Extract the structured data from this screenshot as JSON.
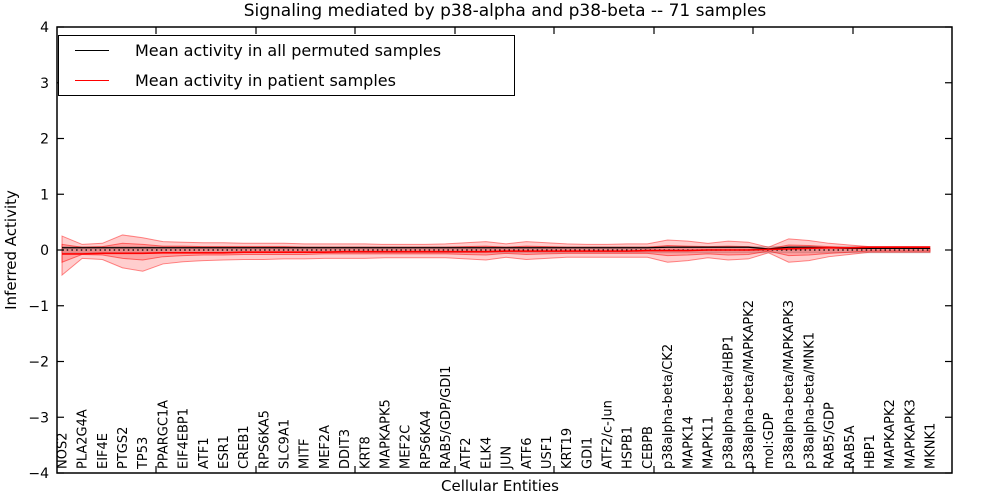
{
  "chart_data": {
    "type": "line",
    "title": "Signaling mediated by p38-alpha and p38-beta -- 71 samples",
    "xlabel": "Cellular Entities",
    "ylabel": "Inferred Activity",
    "ylim": [
      -4,
      4
    ],
    "ytick_labels": [
      "4",
      "3",
      "2",
      "1",
      "0",
      "−1",
      "−2",
      "−3",
      "−4"
    ],
    "ytick_values": [
      4,
      3,
      2,
      1,
      0,
      -1,
      -2,
      -3,
      -4
    ],
    "grid": false,
    "legend_position": "upper left",
    "categories": [
      "NOS2",
      "PLA2G4A",
      "EIF4E",
      "PTGS2",
      "TP53",
      "PPARGC1A",
      "EIF4EBP1",
      "ATF1",
      "ESR1",
      "CREB1",
      "RPS6KA5",
      "SLC9A1",
      "MITF",
      "MEF2A",
      "DDIT3",
      "KRT8",
      "MAPKAPK5",
      "MEF2C",
      "RPS6KA4",
      "RAB5/GDP/GDI1",
      "ATF2",
      "ELK4",
      "JUN",
      "ATF6",
      "USF1",
      "KRT19",
      "GDI1",
      "ATF2/c-Jun",
      "HSPB1",
      "CEBPB",
      "p38alpha-beta/CK2",
      "MAPK14",
      "MAPK11",
      "p38alpha-beta/HBP1",
      "p38alpha-beta/MAPKAPK2",
      "mol:GDP",
      "p38alpha-beta/MAPKAPK3",
      "p38alpha-beta/MNK1",
      "RAB5/GDP",
      "RAB5A",
      "HBP1",
      "MAPKAPK2",
      "MAPKAPK3",
      "MKNK1"
    ],
    "series": [
      {
        "name": "Mean activity in all permuted samples",
        "color": "#000000",
        "style": "solid",
        "width": 1.3,
        "values": [
          0.04,
          0.04,
          0.04,
          0.04,
          0.04,
          0.04,
          0.04,
          0.04,
          0.04,
          0.04,
          0.04,
          0.04,
          0.04,
          0.04,
          0.04,
          0.04,
          0.04,
          0.04,
          0.04,
          0.04,
          0.04,
          0.04,
          0.04,
          0.04,
          0.04,
          0.04,
          0.04,
          0.04,
          0.04,
          0.04,
          0.05,
          0.05,
          0.05,
          0.05,
          0.05,
          0.02,
          0.05,
          0.05,
          0.04,
          0.03,
          0.03,
          0.03,
          0.03,
          0.03
        ]
      },
      {
        "name": "Mean activity in patient samples",
        "color": "#ff0000",
        "style": "solid",
        "width": 1.6,
        "values": [
          -0.07,
          -0.07,
          -0.06,
          -0.06,
          -0.06,
          -0.05,
          -0.05,
          -0.05,
          -0.05,
          -0.04,
          -0.04,
          -0.04,
          -0.04,
          -0.04,
          -0.03,
          -0.03,
          -0.03,
          -0.03,
          -0.03,
          -0.03,
          -0.03,
          -0.03,
          -0.02,
          -0.02,
          -0.02,
          -0.02,
          -0.02,
          -0.02,
          -0.02,
          -0.01,
          -0.01,
          -0.01,
          0.0,
          0.0,
          0.0,
          0.01,
          0.02,
          0.03,
          0.04,
          0.04,
          0.05,
          0.05,
          0.05,
          0.05
        ]
      },
      {
        "name": "zero-baseline",
        "color": "#000000",
        "style": "dotted",
        "width": 1.3,
        "values": 0
      }
    ],
    "bands": [
      {
        "name": "permuted-sample-range",
        "fill": "rgba(130,130,130,0.30)",
        "edge": "rgba(120,120,120,0.35)",
        "upper": 0.06,
        "lower": -0.05
      },
      {
        "name": "patient-sample-range-outer",
        "fill": "rgba(255,60,60,0.25)",
        "edge": "rgba(255,0,0,0.45)",
        "upper": [
          0.25,
          0.1,
          0.12,
          0.27,
          0.22,
          0.15,
          0.14,
          0.13,
          0.13,
          0.12,
          0.12,
          0.12,
          0.11,
          0.11,
          0.11,
          0.11,
          0.1,
          0.1,
          0.1,
          0.11,
          0.13,
          0.15,
          0.11,
          0.15,
          0.13,
          0.11,
          0.1,
          0.1,
          0.11,
          0.11,
          0.18,
          0.16,
          0.12,
          0.16,
          0.14,
          0.05,
          0.2,
          0.17,
          0.12,
          0.09,
          0.06,
          0.06,
          0.06,
          0.06
        ],
        "lower": [
          -0.45,
          -0.15,
          -0.17,
          -0.32,
          -0.38,
          -0.25,
          -0.21,
          -0.19,
          -0.18,
          -0.17,
          -0.17,
          -0.16,
          -0.16,
          -0.15,
          -0.15,
          -0.15,
          -0.14,
          -0.14,
          -0.14,
          -0.14,
          -0.16,
          -0.18,
          -0.13,
          -0.17,
          -0.15,
          -0.13,
          -0.13,
          -0.13,
          -0.13,
          -0.13,
          -0.22,
          -0.19,
          -0.14,
          -0.18,
          -0.16,
          -0.05,
          -0.22,
          -0.19,
          -0.12,
          -0.08,
          -0.04,
          -0.04,
          -0.04,
          -0.04
        ]
      },
      {
        "name": "patient-sample-range-inner",
        "fill": "rgba(255,60,60,0.30)",
        "edge": "rgba(255,0,0,0.50)",
        "upper": [
          0.1,
          0.05,
          0.06,
          0.12,
          0.1,
          0.07,
          0.07,
          0.06,
          0.06,
          0.06,
          0.06,
          0.06,
          0.05,
          0.05,
          0.05,
          0.05,
          0.05,
          0.05,
          0.05,
          0.05,
          0.06,
          0.07,
          0.05,
          0.07,
          0.06,
          0.05,
          0.05,
          0.05,
          0.05,
          0.05,
          0.08,
          0.07,
          0.06,
          0.07,
          0.06,
          0.02,
          0.09,
          0.08,
          0.06,
          0.04,
          0.03,
          0.03,
          0.03,
          0.03
        ],
        "lower": [
          -0.22,
          -0.08,
          -0.09,
          -0.15,
          -0.18,
          -0.12,
          -0.1,
          -0.09,
          -0.09,
          -0.08,
          -0.08,
          -0.08,
          -0.08,
          -0.07,
          -0.07,
          -0.07,
          -0.07,
          -0.07,
          -0.07,
          -0.07,
          -0.08,
          -0.09,
          -0.06,
          -0.08,
          -0.07,
          -0.06,
          -0.06,
          -0.06,
          -0.06,
          -0.06,
          -0.1,
          -0.09,
          -0.07,
          -0.09,
          -0.08,
          -0.02,
          -0.1,
          -0.09,
          -0.06,
          -0.04,
          -0.02,
          -0.02,
          -0.02,
          -0.02
        ]
      }
    ]
  }
}
